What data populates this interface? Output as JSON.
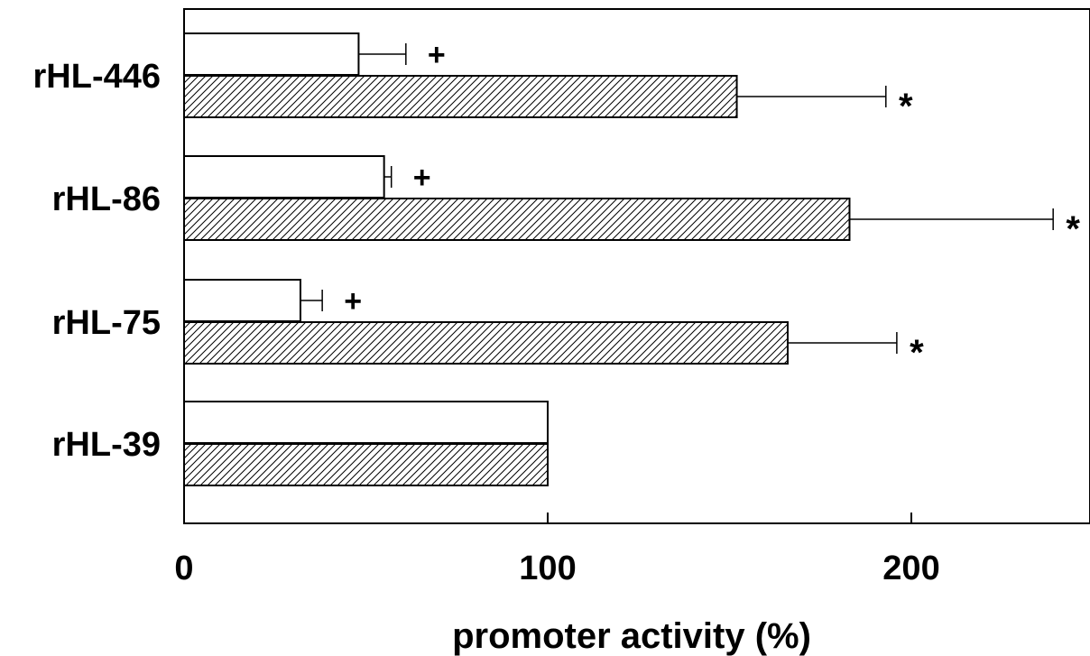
{
  "chart_data": {
    "type": "bar",
    "orientation": "horizontal",
    "categories": [
      "rHL-446",
      "rHL-86",
      "rHL-75",
      "rHL-39"
    ],
    "series": [
      {
        "fill": "#ffffff",
        "values": [
          48,
          55,
          32,
          100
        ],
        "errors": [
          13,
          2,
          6,
          null
        ],
        "markers": [
          "+",
          "+",
          "+",
          ""
        ]
      },
      {
        "fill": "hatched",
        "values": [
          152,
          183,
          166,
          100
        ],
        "errors": [
          41,
          56,
          30,
          null
        ],
        "markers": [
          "*",
          "*",
          "*",
          ""
        ]
      }
    ],
    "xlabel": "promoter activity (%)",
    "ylabel": "",
    "xlim": [
      0,
      250
    ],
    "xticks": [
      0,
      100,
      200
    ],
    "grid": false,
    "legend": "none"
  }
}
